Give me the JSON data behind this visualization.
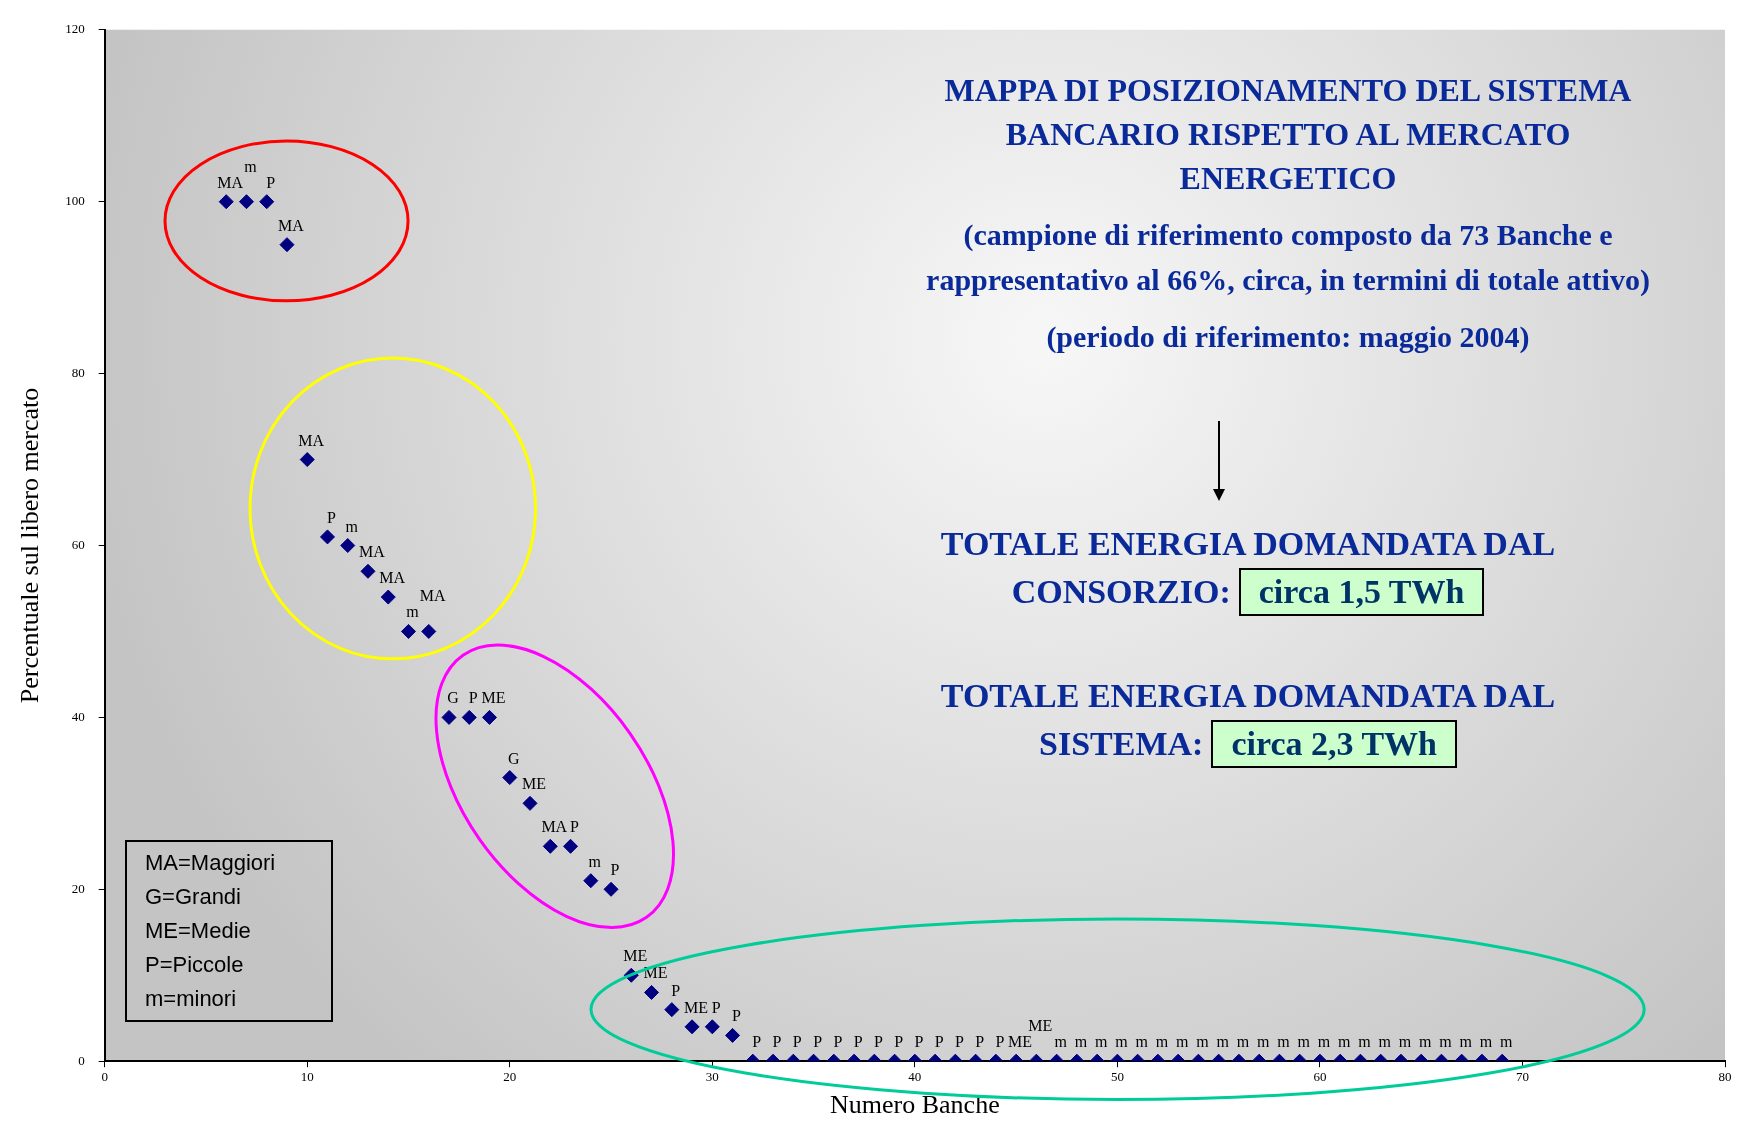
{
  "chart_data": {
    "type": "scatter",
    "title": "MAPPA DI POSIZIONAMENTO DEL SISTEMA BANCARIO RISPETTO AL MERCATO ENERGETICO",
    "subtitle": "(campione di riferimento composto da 73 Banche e rappresentativo al 66%, circa, in termini di totale attivo)",
    "xlabel": "Numero Banche",
    "ylabel": "Percentuale sul libero mercato",
    "annotations": [
      "(periodo di riferimento: maggio 2004)",
      "TOTALE ENERGIA DOMANDATA DAL CONSORZIO:",
      "circa 1,5 TWh",
      "TOTALE ENERGIA DOMANDATA DAL SISTEMA:",
      "circa 2,3 TWh",
      "MA=Maggiori",
      "G=Grandi",
      "ME=Medie",
      "P=Piccole",
      "m=minori"
    ],
    "x": [
      6,
      7,
      8,
      9,
      10,
      11,
      12,
      13,
      14,
      15,
      16,
      17,
      18,
      19,
      20,
      21,
      22,
      23,
      24,
      25,
      26,
      27,
      28,
      29,
      30,
      31,
      32,
      33,
      34,
      35,
      36,
      37,
      38,
      39,
      40,
      41,
      42,
      43,
      44,
      45,
      46,
      47,
      48,
      49,
      50,
      51,
      52,
      53,
      54,
      55,
      56,
      57,
      58,
      59,
      60,
      61,
      62,
      63,
      64,
      65,
      66,
      67,
      68,
      69
    ],
    "series": [
      {
        "color": "#000080",
        "values": [
          100,
          100,
          100,
          95,
          70,
          61,
          60,
          57,
          54,
          50,
          50,
          40,
          40,
          40,
          33,
          30,
          25,
          25,
          21,
          20,
          10,
          8,
          6,
          4,
          4,
          3,
          0,
          0,
          0,
          0,
          0,
          0,
          0,
          0,
          0,
          0,
          0,
          0,
          0,
          0,
          0,
          0,
          0,
          0,
          0,
          0,
          0,
          0,
          0,
          0,
          0,
          0,
          0,
          0,
          0,
          0,
          0,
          0,
          0,
          0,
          0,
          0,
          0,
          0
        ],
        "value_labels": [
          "MA",
          "m",
          "P",
          "MA",
          "MA",
          "P",
          "m",
          "MA",
          "MA",
          "m",
          "MA",
          "G",
          "P",
          "ME",
          "G",
          "ME",
          "MA",
          "P",
          "m",
          "P",
          "ME",
          "ME",
          "P",
          "ME",
          "P",
          "P",
          "P",
          "P",
          "P",
          "P",
          "P",
          "P",
          "P",
          "P",
          "P",
          "P",
          "P",
          "P",
          "P",
          "ME",
          "ME",
          "m",
          "m",
          "m",
          "m",
          "m",
          "m",
          "m",
          "m",
          "m",
          "m",
          "m",
          "m",
          "m",
          "m",
          "m",
          "m",
          "m",
          "m",
          "m",
          "m",
          "m",
          "m",
          "m"
        ]
      }
    ],
    "xlim": [
      0,
      80
    ],
    "xticks": [
      0,
      10,
      20,
      30,
      40,
      50,
      60,
      70,
      80
    ],
    "ylim": [
      0,
      120
    ],
    "yticks": [
      0,
      20,
      40,
      60,
      80,
      100,
      120
    ],
    "grid": false,
    "legend": false,
    "marker": "diamond"
  }
}
